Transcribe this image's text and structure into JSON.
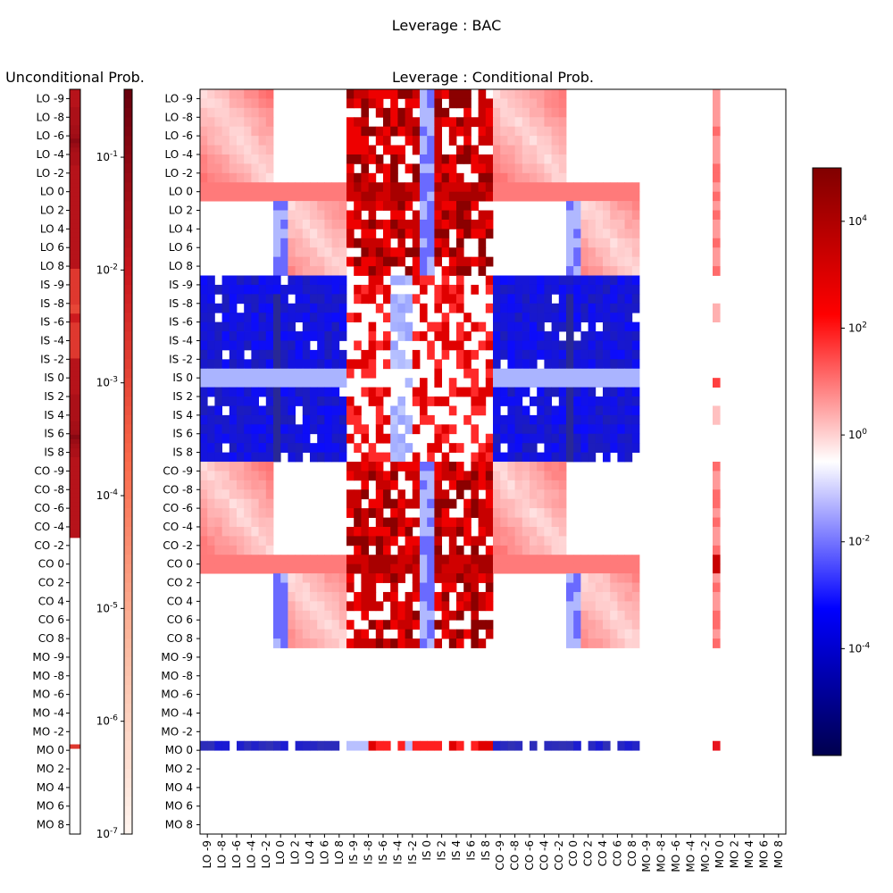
{
  "figure": {
    "suptitle": "Leverage : BAC"
  },
  "chart_data": [
    {
      "type": "heatmap",
      "title": "Unconditional Prob.",
      "row_labels": [
        "LO -9",
        "LO -8",
        "LO -6",
        "LO -4",
        "LO -2",
        "LO 0",
        "LO 2",
        "LO 4",
        "LO 6",
        "LO 8",
        "IS -9",
        "IS -8",
        "IS -6",
        "IS -4",
        "IS -2",
        "IS 0",
        "IS 2",
        "IS 4",
        "IS 6",
        "IS 8",
        "CO -9",
        "CO -8",
        "CO -6",
        "CO -4",
        "CO -2",
        "CO 0",
        "CO 2",
        "CO 4",
        "CO 6",
        "CO 8",
        "MO -9",
        "MO -8",
        "MO -6",
        "MO -4",
        "MO -2",
        "MO 0",
        "MO 2",
        "MO 4",
        "MO 6",
        "MO 8"
      ],
      "scale": "log",
      "colormap": "Reds",
      "clim": [
        1e-07,
        0.4
      ],
      "colorbar_ticks": [
        "10^-7",
        "10^-6",
        "10^-5",
        "10^-4",
        "10^-3",
        "10^-2",
        "10^-1"
      ],
      "colorbar_tick_values": [
        1e-07,
        1e-06,
        1e-05,
        0.0001,
        0.001,
        0.01,
        0.1
      ],
      "colorbar_cells": 80,
      "values": [
        0.02,
        0.02,
        0.02,
        0.02,
        0.03,
        0.03,
        0.03,
        0.03,
        0.04,
        0.04,
        0.05,
        0.1,
        0.06,
        0.04,
        0.03,
        0.03,
        0.03,
        0.02,
        0.02,
        0.02,
        0.02,
        0.02,
        0.02,
        0.02,
        0.02,
        0.02,
        0.02,
        0.02,
        0.02,
        0.02,
        0.02,
        0.02,
        0.02,
        0.02,
        0.02,
        0.02,
        0.02,
        0.02,
        0.02,
        0.02,
        0.002,
        0.002,
        0.002,
        0.002,
        0.002,
        0.002,
        0.002,
        0.002,
        0.001,
        0.001,
        0.008,
        0.008,
        0.002,
        0.002,
        0.002,
        0.002,
        0.002,
        0.002,
        0.002,
        0.002,
        0.02,
        0.02,
        0.02,
        0.02,
        0.02,
        0.02,
        0.02,
        0.02,
        0.03,
        0.03,
        0.03,
        0.03,
        0.03,
        0.03,
        0.04,
        0.04,
        0.05,
        0.12,
        0.06,
        0.04,
        0.03,
        0.03,
        0.02,
        0.02,
        0.02,
        0.02,
        0.02,
        0.02,
        0.02,
        0.02,
        0.02,
        0.02,
        0.02,
        0.02,
        0.02,
        0.02,
        0.02,
        0.02,
        0.02,
        0.02,
        0.0,
        0.0,
        0.0,
        0.0,
        0.0,
        0.0,
        0.0,
        0.0,
        0.0,
        0.0,
        0.0,
        0.0,
        0.0,
        0.0,
        0.0,
        0.0,
        0.0,
        0.0,
        0.0,
        0.0,
        0.0,
        0.0,
        0.0,
        0.0,
        0.0,
        0.0,
        0.0,
        0.0,
        0.0,
        0.0,
        0.0,
        0.0,
        0.0,
        0.0,
        0.0,
        0.0,
        0.0,
        0.0,
        0.0,
        0.0,
        0.0,
        0.0,
        0.0,
        0.0,
        0.0,
        0.0,
        0.002,
        0.0,
        0.0,
        0.0,
        0.0,
        0.0,
        0.0,
        0.0,
        0.0,
        0.0,
        0.0,
        0.0,
        0.0,
        0.0,
        0.0,
        0.0,
        0.0,
        0.0,
        0.0,
        0.0
      ],
      "note_values": "one value per colorbar cell (80 cells = 2 per row label); 0.0 = white"
    },
    {
      "type": "heatmap",
      "title": "Leverage : Conditional Prob.",
      "row_labels": [
        "LO -9",
        "LO -8",
        "LO -6",
        "LO -4",
        "LO -2",
        "LO 0",
        "LO 2",
        "LO 4",
        "LO 6",
        "LO 8",
        "IS -9",
        "IS -8",
        "IS -6",
        "IS -4",
        "IS -2",
        "IS 0",
        "IS 2",
        "IS 4",
        "IS 6",
        "IS 8",
        "CO -9",
        "CO -8",
        "CO -6",
        "CO -4",
        "CO -2",
        "CO 0",
        "CO 2",
        "CO 4",
        "CO 6",
        "CO 8",
        "MO -9",
        "MO -8",
        "MO -6",
        "MO -4",
        "MO -2",
        "MO 0",
        "MO 2",
        "MO 4",
        "MO 6",
        "MO 8"
      ],
      "col_labels": [
        "LO -9",
        "LO -8",
        "LO -6",
        "LO -4",
        "LO -2",
        "LO 0",
        "LO 2",
        "LO 4",
        "LO 6",
        "LO 8",
        "IS -9",
        "IS -8",
        "IS -6",
        "IS -4",
        "IS -2",
        "IS 0",
        "IS 2",
        "IS 4",
        "IS 6",
        "IS 8",
        "CO -9",
        "CO -8",
        "CO -6",
        "CO -4",
        "CO -2",
        "CO 0",
        "CO 2",
        "CO 4",
        "CO 6",
        "CO 8",
        "MO -9",
        "MO -8",
        "MO -6",
        "MO -4",
        "MO -2",
        "MO 0",
        "MO 2",
        "MO 4",
        "MO 6",
        "MO 8"
      ],
      "grid_cells": 80,
      "scale": "log",
      "colormap": "seismic",
      "clim": [
        1e-06,
        100000.0
      ],
      "colorbar_ticks": [
        "10^-4",
        "10^-2",
        "10^0",
        "10^2",
        "10^4"
      ],
      "colorbar_tick_values": [
        0.0001,
        0.01,
        1,
        100,
        10000
      ],
      "block_pattern": {
        "groups": [
          "LO",
          "IS",
          "CO",
          "MO"
        ],
        "description": "Row and column groups of 20 fine cells (2 per labelled level). LO and CO rows are red (>1) against LO/CO columns near the diagonal and dark red against IS columns; IS rows are blue (<1) against LO/CO columns; MO -9..MO 8 rows are empty except the MO 0 row; MO columns are empty except the MO 0 column; blank cells are missing values."
      }
    }
  ]
}
